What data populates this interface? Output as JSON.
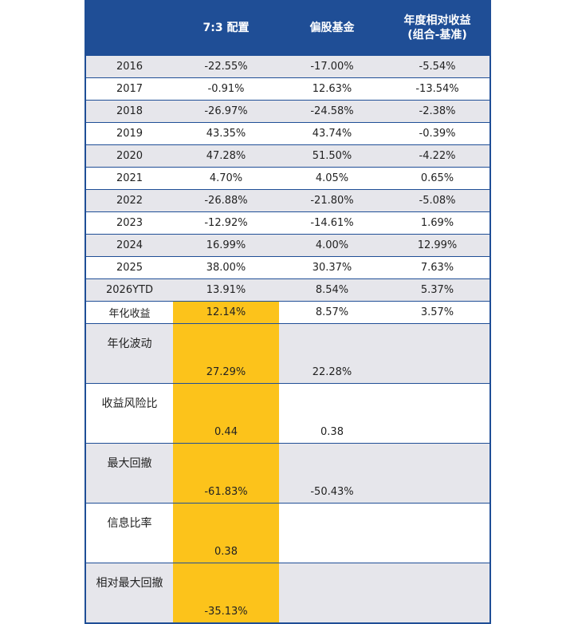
{
  "header": {
    "col0": "",
    "col1": "7:3 配置",
    "col2": "偏股基金",
    "col3_line1": "年度相对收益",
    "col3_line2": "(组合-基准)"
  },
  "rows": [
    {
      "label": "2016",
      "v1": "-22.55%",
      "v2": "-17.00%",
      "v3": "-5.54%"
    },
    {
      "label": "2017",
      "v1": "-0.91%",
      "v2": "12.63%",
      "v3": "-13.54%"
    },
    {
      "label": "2018",
      "v1": "-26.97%",
      "v2": "-24.58%",
      "v3": "-2.38%"
    },
    {
      "label": "2019",
      "v1": "43.35%",
      "v2": "43.74%",
      "v3": "-0.39%"
    },
    {
      "label": "2020",
      "v1": "47.28%",
      "v2": "51.50%",
      "v3": "-4.22%"
    },
    {
      "label": "2021",
      "v1": "4.70%",
      "v2": "4.05%",
      "v3": "0.65%"
    },
    {
      "label": "2022",
      "v1": "-26.88%",
      "v2": "-21.80%",
      "v3": "-5.08%"
    },
    {
      "label": "2023",
      "v1": "-12.92%",
      "v2": "-14.61%",
      "v3": "1.69%"
    },
    {
      "label": "2024",
      "v1": "16.99%",
      "v2": "4.00%",
      "v3": "12.99%"
    },
    {
      "label": "2025",
      "v1": "38.00%",
      "v2": "30.37%",
      "v3": "7.63%"
    },
    {
      "label": "2026YTD",
      "v1": "13.91%",
      "v2": "8.54%",
      "v3": "5.37%"
    },
    {
      "label": "年化收益",
      "v1": "12.14%",
      "v2": "8.57%",
      "v3": "3.57%"
    }
  ],
  "stats": [
    {
      "label": "年化波动",
      "v1": "27.29%",
      "v2": "22.28%",
      "v3": ""
    },
    {
      "label": "收益风险比",
      "v1": "0.44",
      "v2": "0.38",
      "v3": ""
    },
    {
      "label": "最大回撤",
      "v1": "-61.83%",
      "v2": "-50.43%",
      "v3": ""
    },
    {
      "label": "信息比率",
      "v1": "0.38",
      "v2": "",
      "v3": ""
    },
    {
      "label": "相对最大回撤",
      "v1": "-35.13%",
      "v2": "",
      "v3": ""
    }
  ],
  "colors": {
    "header_bg": "#1f4e96",
    "highlight": "#fcc31b",
    "shade": "#e6e6eb"
  }
}
